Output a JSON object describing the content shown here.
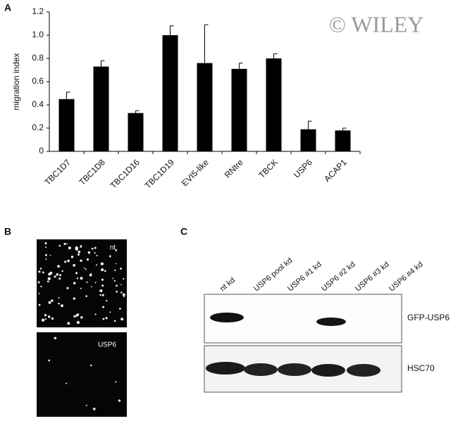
{
  "chart_data": {
    "type": "bar",
    "ylabel": "migration index",
    "categories": [
      "TBC1D7",
      "TBC1D8",
      "TBC1D16",
      "TBC1D19",
      "EVI5-like",
      "RNtre",
      "TBCK",
      "USP6",
      "ACAP1"
    ],
    "values": [
      0.45,
      0.73,
      0.33,
      1.0,
      0.76,
      0.71,
      0.8,
      0.19,
      0.18
    ],
    "errors": [
      0.06,
      0.05,
      0.02,
      0.08,
      0.33,
      0.05,
      0.04,
      0.07,
      0.02
    ],
    "color": "#000000",
    "ylim": [
      0,
      1.2
    ],
    "yticks": [
      0,
      0.2,
      0.4,
      0.6,
      0.8,
      {
        "value": 1,
        "label": "1.0"
      },
      1.2
    ]
  },
  "watermark": "© WILEY",
  "panel_labels": [
    "A",
    "B",
    "C"
  ],
  "panel_b": {
    "labels": [
      "nt",
      "USP6"
    ]
  },
  "panel_c": {
    "lanes": [
      "nt kd",
      "USP6 pool kd",
      "USP6 #1 kd",
      "USP6 #2 kd",
      "USP6 #3 kd",
      "USP6 #4 kd"
    ],
    "bands": [
      "GFP-USP6",
      "HSC70"
    ]
  }
}
